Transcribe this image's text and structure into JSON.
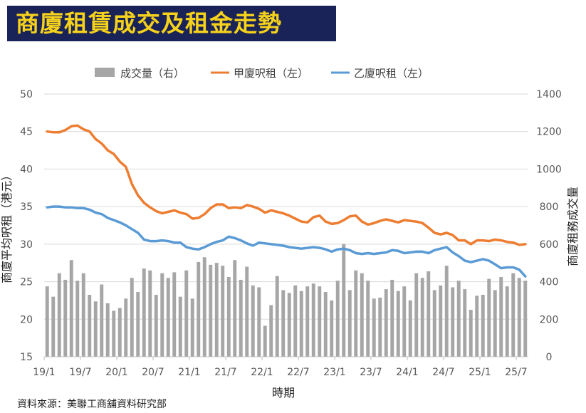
{
  "title": "商廈租賃成交及租金走勢",
  "source": "資料來源：美聯工商舖資料研究部",
  "chart_data": {
    "type": "bar+line",
    "xlabel": "時期",
    "ylabel_left": "商廈平均呎租（港元）",
    "ylabel_right": "商廈租務成交量",
    "left_ylim": [
      15,
      50
    ],
    "left_ticks": [
      "15",
      "20",
      "25",
      "30",
      "35",
      "40",
      "45",
      "50"
    ],
    "right_ylim": [
      0,
      1400
    ],
    "right_ticks": [
      "0",
      "200",
      "400",
      "600",
      "800",
      "1000",
      "1200",
      "1400"
    ],
    "x_tick_labels": [
      "19/1",
      "19/7",
      "20/1",
      "20/7",
      "21/1",
      "21/7",
      "22/1",
      "22/7",
      "23/1",
      "23/7",
      "24/1",
      "24/7",
      "25/1",
      "25/7"
    ],
    "legend": {
      "volume": "成交量（右）",
      "grade_a": "甲廈呎租（左）",
      "grade_b": "乙廈呎租（左）"
    },
    "colors": {
      "volume": "#a6a6a6",
      "grade_a": "#ed7d31",
      "grade_b": "#5b9bd5"
    },
    "series": [
      {
        "name": "成交量（右）",
        "axis": "right",
        "type": "bar",
        "values": [
          375,
          320,
          445,
          410,
          515,
          405,
          445,
          330,
          295,
          385,
          285,
          245,
          260,
          310,
          420,
          345,
          470,
          460,
          330,
          445,
          420,
          450,
          320,
          460,
          310,
          505,
          530,
          490,
          500,
          485,
          425,
          515,
          410,
          480,
          380,
          370,
          165,
          275,
          430,
          355,
          340,
          380,
          350,
          375,
          390,
          375,
          345,
          300,
          405,
          600,
          355,
          460,
          445,
          405,
          310,
          315,
          360,
          410,
          350,
          375,
          300,
          445,
          420,
          455,
          355,
          380,
          485,
          370,
          405,
          360,
          250,
          325,
          330,
          415,
          355,
          425,
          375,
          445,
          420,
          405
        ]
      },
      {
        "name": "甲廈呎租（左）",
        "axis": "left",
        "type": "line",
        "values": [
          45.0,
          44.9,
          44.9,
          45.2,
          45.7,
          45.8,
          45.3,
          45.0,
          44.0,
          43.4,
          42.5,
          42.0,
          41.0,
          40.3,
          38.0,
          36.5,
          35.5,
          34.9,
          34.4,
          34.1,
          34.3,
          34.5,
          34.2,
          34.0,
          33.4,
          33.5,
          34.0,
          34.8,
          35.3,
          35.3,
          34.8,
          34.9,
          34.8,
          35.2,
          35.0,
          34.7,
          34.2,
          34.5,
          34.3,
          34.1,
          33.8,
          33.4,
          33.0,
          32.9,
          33.6,
          33.8,
          33.0,
          32.7,
          32.8,
          33.2,
          33.7,
          33.8,
          33.0,
          32.6,
          32.8,
          33.1,
          33.3,
          33.1,
          32.9,
          33.2,
          33.1,
          33.0,
          32.8,
          32.2,
          31.5,
          31.3,
          31.5,
          31.2,
          30.5,
          30.5,
          30.0,
          30.5,
          30.5,
          30.4,
          30.6,
          30.5,
          30.3,
          30.2,
          29.9,
          30.0
        ]
      },
      {
        "name": "乙廈呎租（左）",
        "axis": "left",
        "type": "line",
        "values": [
          34.9,
          35.0,
          35.0,
          34.9,
          34.9,
          34.8,
          34.8,
          34.6,
          34.2,
          34.0,
          33.5,
          33.2,
          32.9,
          32.5,
          32.0,
          31.5,
          30.6,
          30.4,
          30.4,
          30.5,
          30.4,
          30.2,
          30.2,
          29.6,
          29.4,
          29.3,
          29.6,
          30.0,
          30.3,
          30.5,
          31.0,
          30.8,
          30.5,
          30.1,
          29.8,
          30.2,
          30.1,
          30.0,
          29.9,
          29.8,
          29.6,
          29.5,
          29.4,
          29.5,
          29.6,
          29.5,
          29.3,
          29.0,
          29.3,
          29.4,
          29.2,
          28.8,
          28.7,
          28.8,
          28.7,
          28.8,
          28.9,
          29.2,
          29.1,
          28.8,
          28.9,
          29.0,
          29.0,
          28.8,
          29.2,
          29.4,
          29.6,
          28.9,
          28.4,
          27.8,
          27.6,
          27.8,
          28.0,
          27.8,
          27.3,
          26.8,
          26.9,
          26.9,
          26.6,
          25.7
        ]
      }
    ]
  }
}
